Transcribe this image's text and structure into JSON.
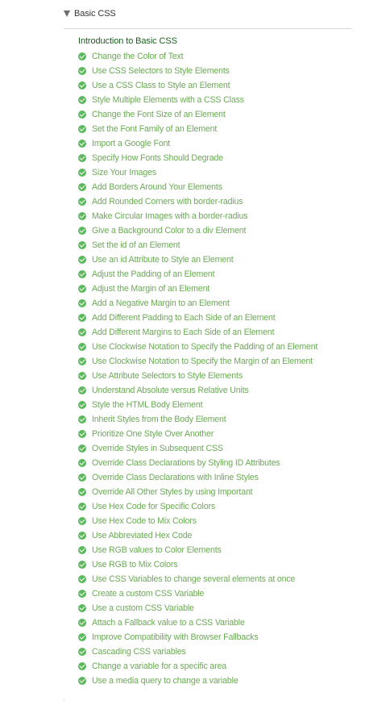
{
  "section": {
    "title": "Basic CSS",
    "intro": "Introduction to Basic CSS",
    "lessons": [
      "Change the Color of Text",
      "Use CSS Selectors to Style Elements",
      "Use a CSS Class to Style an Element",
      "Style Multiple Elements with a CSS Class",
      "Change the Font Size of an Element",
      "Set the Font Family of an Element",
      "Import a Google Font",
      "Specify How Fonts Should Degrade",
      "Size Your Images",
      "Add Borders Around Your Elements",
      "Add Rounded Corners with border-radius",
      "Make Circular Images with a border-radius",
      "Give a Background Color to a div Element",
      "Set the id of an Element",
      "Use an id Attribute to Style an Element",
      "Adjust the Padding of an Element",
      "Adjust the Margin of an Element",
      "Add a Negative Margin to an Element",
      "Add Different Padding to Each Side of an Element",
      "Add Different Margins to Each Side of an Element",
      "Use Clockwise Notation to Specify the Padding of an Element",
      "Use Clockwise Notation to Specify the Margin of an Element",
      "Use Attribute Selectors to Style Elements",
      "Understand Absolute versus Relative Units",
      "Style the HTML Body Element",
      "Inherit Styles from the Body Element",
      "Prioritize One Style Over Another",
      "Override Styles in Subsequent CSS",
      "Override Class Declarations by Styling ID Attributes",
      "Override Class Declarations with Inline Styles",
      "Override All Other Styles by using Important",
      "Use Hex Code for Specific Colors",
      "Use Hex Code to Mix Colors",
      "Use Abbreviated Hex Code",
      "Use RGB values to Color Elements",
      "Use RGB to Mix Colors",
      "Use CSS Variables to change several elements at once",
      "Create a custom CSS Variable",
      "Use a custom CSS Variable",
      "Attach a Fallback value to a CSS Variable",
      "Improve Compatibility with Browser Fallbacks",
      "Cascading CSS variables",
      "Change a variable for a specific area",
      "Use a media query to change a variable"
    ]
  },
  "icons": {
    "header": "caret-down-icon",
    "lesson": "check-circle-icon"
  },
  "colors": {
    "lesson_text": "#6aaa54",
    "check_fill": "#5cb85c",
    "intro_text": "#1b5e20",
    "divider": "#d9d9d9"
  }
}
